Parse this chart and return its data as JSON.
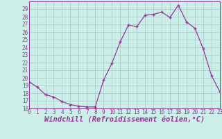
{
  "x": [
    0,
    1,
    2,
    3,
    4,
    5,
    6,
    7,
    8,
    9,
    10,
    11,
    12,
    13,
    14,
    15,
    16,
    17,
    18,
    19,
    20,
    21,
    22,
    23
  ],
  "y": [
    19.5,
    18.8,
    17.8,
    17.5,
    16.9,
    16.5,
    16.3,
    16.2,
    16.2,
    19.7,
    21.9,
    24.7,
    26.9,
    26.7,
    28.2,
    28.3,
    28.6,
    27.9,
    29.5,
    27.3,
    26.5,
    23.8,
    20.3,
    18.2
  ],
  "line_color": "#993399",
  "marker": "+",
  "marker_size": 3.5,
  "marker_edge_width": 1.0,
  "bg_color": "#cceee8",
  "grid_color": "#aacccc",
  "xlabel": "Windchill (Refroidissement éolien,°C)",
  "ylim": [
    16,
    30
  ],
  "yticks": [
    16,
    17,
    18,
    19,
    20,
    21,
    22,
    23,
    24,
    25,
    26,
    27,
    28,
    29
  ],
  "xticks": [
    0,
    1,
    2,
    3,
    4,
    5,
    6,
    7,
    8,
    9,
    10,
    11,
    12,
    13,
    14,
    15,
    16,
    17,
    18,
    19,
    20,
    21,
    22,
    23
  ],
  "xlim": [
    0,
    23
  ],
  "tick_color": "#993399",
  "xlabel_color": "#993399",
  "xlabel_fontsize": 7.5,
  "tick_fontsize": 5.5,
  "line_width": 0.9
}
